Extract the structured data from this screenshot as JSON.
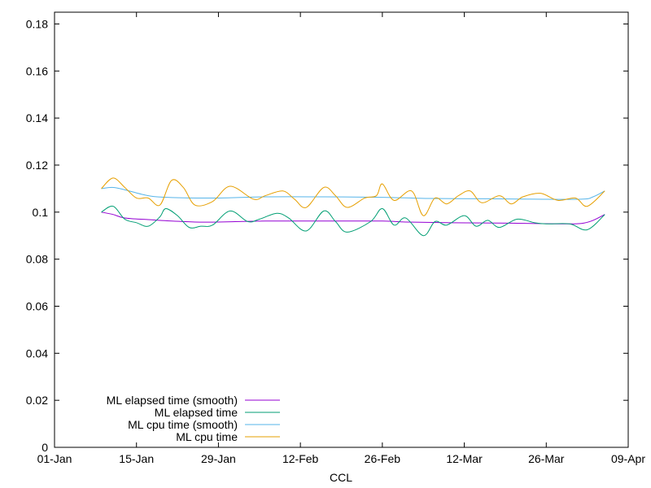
{
  "chart_data": {
    "type": "line",
    "title": "",
    "xlabel": "CCL",
    "ylabel": "",
    "x_axis": {
      "kind": "date",
      "range": [
        "2021-01-01",
        "2021-04-09"
      ],
      "ticks": [
        {
          "date": "2021-01-01",
          "label": "01-Jan"
        },
        {
          "date": "2021-01-15",
          "label": "15-Jan"
        },
        {
          "date": "2021-01-29",
          "label": "29-Jan"
        },
        {
          "date": "2021-02-12",
          "label": "12-Feb"
        },
        {
          "date": "2021-02-26",
          "label": "26-Feb"
        },
        {
          "date": "2021-03-12",
          "label": "12-Mar"
        },
        {
          "date": "2021-03-26",
          "label": "26-Mar"
        },
        {
          "date": "2021-04-09",
          "label": "09-Apr"
        }
      ]
    },
    "y_axis": {
      "range": [
        0,
        0.185
      ],
      "ticks": [
        {
          "value": 0,
          "label": "0"
        },
        {
          "value": 0.02,
          "label": "0.02"
        },
        {
          "value": 0.04,
          "label": "0.04"
        },
        {
          "value": 0.06,
          "label": "0.06"
        },
        {
          "value": 0.08,
          "label": "0.08"
        },
        {
          "value": 0.1,
          "label": "0.1"
        },
        {
          "value": 0.12,
          "label": "0.12"
        },
        {
          "value": 0.14,
          "label": "0.14"
        },
        {
          "value": 0.16,
          "label": "0.16"
        },
        {
          "value": 0.18,
          "label": "0.18"
        }
      ]
    },
    "grid": false,
    "legend_position": "bottom-left",
    "series": [
      {
        "name": "ML elapsed time (smooth)",
        "color": "#9400d3",
        "points": [
          [
            "2021-01-09",
            0.1
          ],
          [
            "2021-01-11",
            0.099
          ],
          [
            "2021-01-13",
            0.0975
          ],
          [
            "2021-01-17",
            0.0968
          ],
          [
            "2021-01-21",
            0.0962
          ],
          [
            "2021-01-25",
            0.0958
          ],
          [
            "2021-01-29",
            0.0958
          ],
          [
            "2021-02-06",
            0.0962
          ],
          [
            "2021-02-16",
            0.0962
          ],
          [
            "2021-02-26",
            0.0962
          ],
          [
            "2021-03-02",
            0.0958
          ],
          [
            "2021-03-10",
            0.0955
          ],
          [
            "2021-03-20",
            0.0953
          ],
          [
            "2021-03-28",
            0.095
          ],
          [
            "2021-04-01",
            0.0952
          ],
          [
            "2021-04-03",
            0.0965
          ],
          [
            "2021-04-05",
            0.099
          ]
        ]
      },
      {
        "name": "ML elapsed time",
        "color": "#009e73",
        "points": [
          [
            "2021-01-09",
            0.1
          ],
          [
            "2021-01-11",
            0.1025
          ],
          [
            "2021-01-13",
            0.097
          ],
          [
            "2021-01-15",
            0.0955
          ],
          [
            "2021-01-17",
            0.094
          ],
          [
            "2021-01-19",
            0.098
          ],
          [
            "2021-01-20",
            0.1015
          ],
          [
            "2021-01-22",
            0.0985
          ],
          [
            "2021-01-24",
            0.0935
          ],
          [
            "2021-01-26",
            0.094
          ],
          [
            "2021-01-28",
            0.0945
          ],
          [
            "2021-01-31",
            0.1005
          ],
          [
            "2021-02-03",
            0.096
          ],
          [
            "2021-02-05",
            0.097
          ],
          [
            "2021-02-08",
            0.0995
          ],
          [
            "2021-02-10",
            0.0975
          ],
          [
            "2021-02-13",
            0.092
          ],
          [
            "2021-02-16",
            0.1005
          ],
          [
            "2021-02-18",
            0.096
          ],
          [
            "2021-02-20",
            0.0915
          ],
          [
            "2021-02-24",
            0.096
          ],
          [
            "2021-02-26",
            0.1015
          ],
          [
            "2021-02-28",
            0.0945
          ],
          [
            "2021-03-02",
            0.0975
          ],
          [
            "2021-03-05",
            0.09
          ],
          [
            "2021-03-07",
            0.096
          ],
          [
            "2021-03-09",
            0.0945
          ],
          [
            "2021-03-12",
            0.0985
          ],
          [
            "2021-03-14",
            0.094
          ],
          [
            "2021-03-16",
            0.0965
          ],
          [
            "2021-03-18",
            0.0935
          ],
          [
            "2021-03-21",
            0.097
          ],
          [
            "2021-03-24",
            0.0955
          ],
          [
            "2021-03-26",
            0.095
          ],
          [
            "2021-03-30",
            0.095
          ],
          [
            "2021-04-02",
            0.0925
          ],
          [
            "2021-04-05",
            0.099
          ]
        ]
      },
      {
        "name": "ML cpu time (smooth)",
        "color": "#56b4e9",
        "points": [
          [
            "2021-01-09",
            0.11
          ],
          [
            "2021-01-11",
            0.1105
          ],
          [
            "2021-01-13",
            0.1095
          ],
          [
            "2021-01-17",
            0.107
          ],
          [
            "2021-01-21",
            0.1062
          ],
          [
            "2021-01-29",
            0.106
          ],
          [
            "2021-02-06",
            0.1065
          ],
          [
            "2021-02-16",
            0.1065
          ],
          [
            "2021-02-26",
            0.1063
          ],
          [
            "2021-03-06",
            0.1058
          ],
          [
            "2021-03-16",
            0.1057
          ],
          [
            "2021-03-24",
            0.1055
          ],
          [
            "2021-04-01",
            0.1055
          ],
          [
            "2021-04-03",
            0.1065
          ],
          [
            "2021-04-05",
            0.109
          ]
        ]
      },
      {
        "name": "ML cpu time",
        "color": "#e69f00",
        "points": [
          [
            "2021-01-09",
            0.11
          ],
          [
            "2021-01-11",
            0.1145
          ],
          [
            "2021-01-13",
            0.1105
          ],
          [
            "2021-01-15",
            0.106
          ],
          [
            "2021-01-17",
            0.106
          ],
          [
            "2021-01-19",
            0.103
          ],
          [
            "2021-01-21",
            0.1135
          ],
          [
            "2021-01-23",
            0.1105
          ],
          [
            "2021-01-25",
            0.103
          ],
          [
            "2021-01-28",
            0.1045
          ],
          [
            "2021-01-31",
            0.111
          ],
          [
            "2021-02-04",
            0.1055
          ],
          [
            "2021-02-06",
            0.107
          ],
          [
            "2021-02-09",
            0.109
          ],
          [
            "2021-02-11",
            0.1055
          ],
          [
            "2021-02-13",
            0.102
          ],
          [
            "2021-02-16",
            0.1105
          ],
          [
            "2021-02-18",
            0.107
          ],
          [
            "2021-02-20",
            0.102
          ],
          [
            "2021-02-23",
            0.106
          ],
          [
            "2021-02-25",
            0.107
          ],
          [
            "2021-02-26",
            0.112
          ],
          [
            "2021-02-28",
            0.105
          ],
          [
            "2021-03-03",
            0.109
          ],
          [
            "2021-03-05",
            0.0985
          ],
          [
            "2021-03-07",
            0.106
          ],
          [
            "2021-03-09",
            0.1035
          ],
          [
            "2021-03-11",
            0.107
          ],
          [
            "2021-03-13",
            0.109
          ],
          [
            "2021-03-15",
            0.104
          ],
          [
            "2021-03-18",
            0.107
          ],
          [
            "2021-03-20",
            0.1035
          ],
          [
            "2021-03-22",
            0.1065
          ],
          [
            "2021-03-25",
            0.108
          ],
          [
            "2021-03-28",
            0.105
          ],
          [
            "2021-03-31",
            0.106
          ],
          [
            "2021-04-02",
            0.1025
          ],
          [
            "2021-04-05",
            0.109
          ]
        ]
      }
    ]
  }
}
